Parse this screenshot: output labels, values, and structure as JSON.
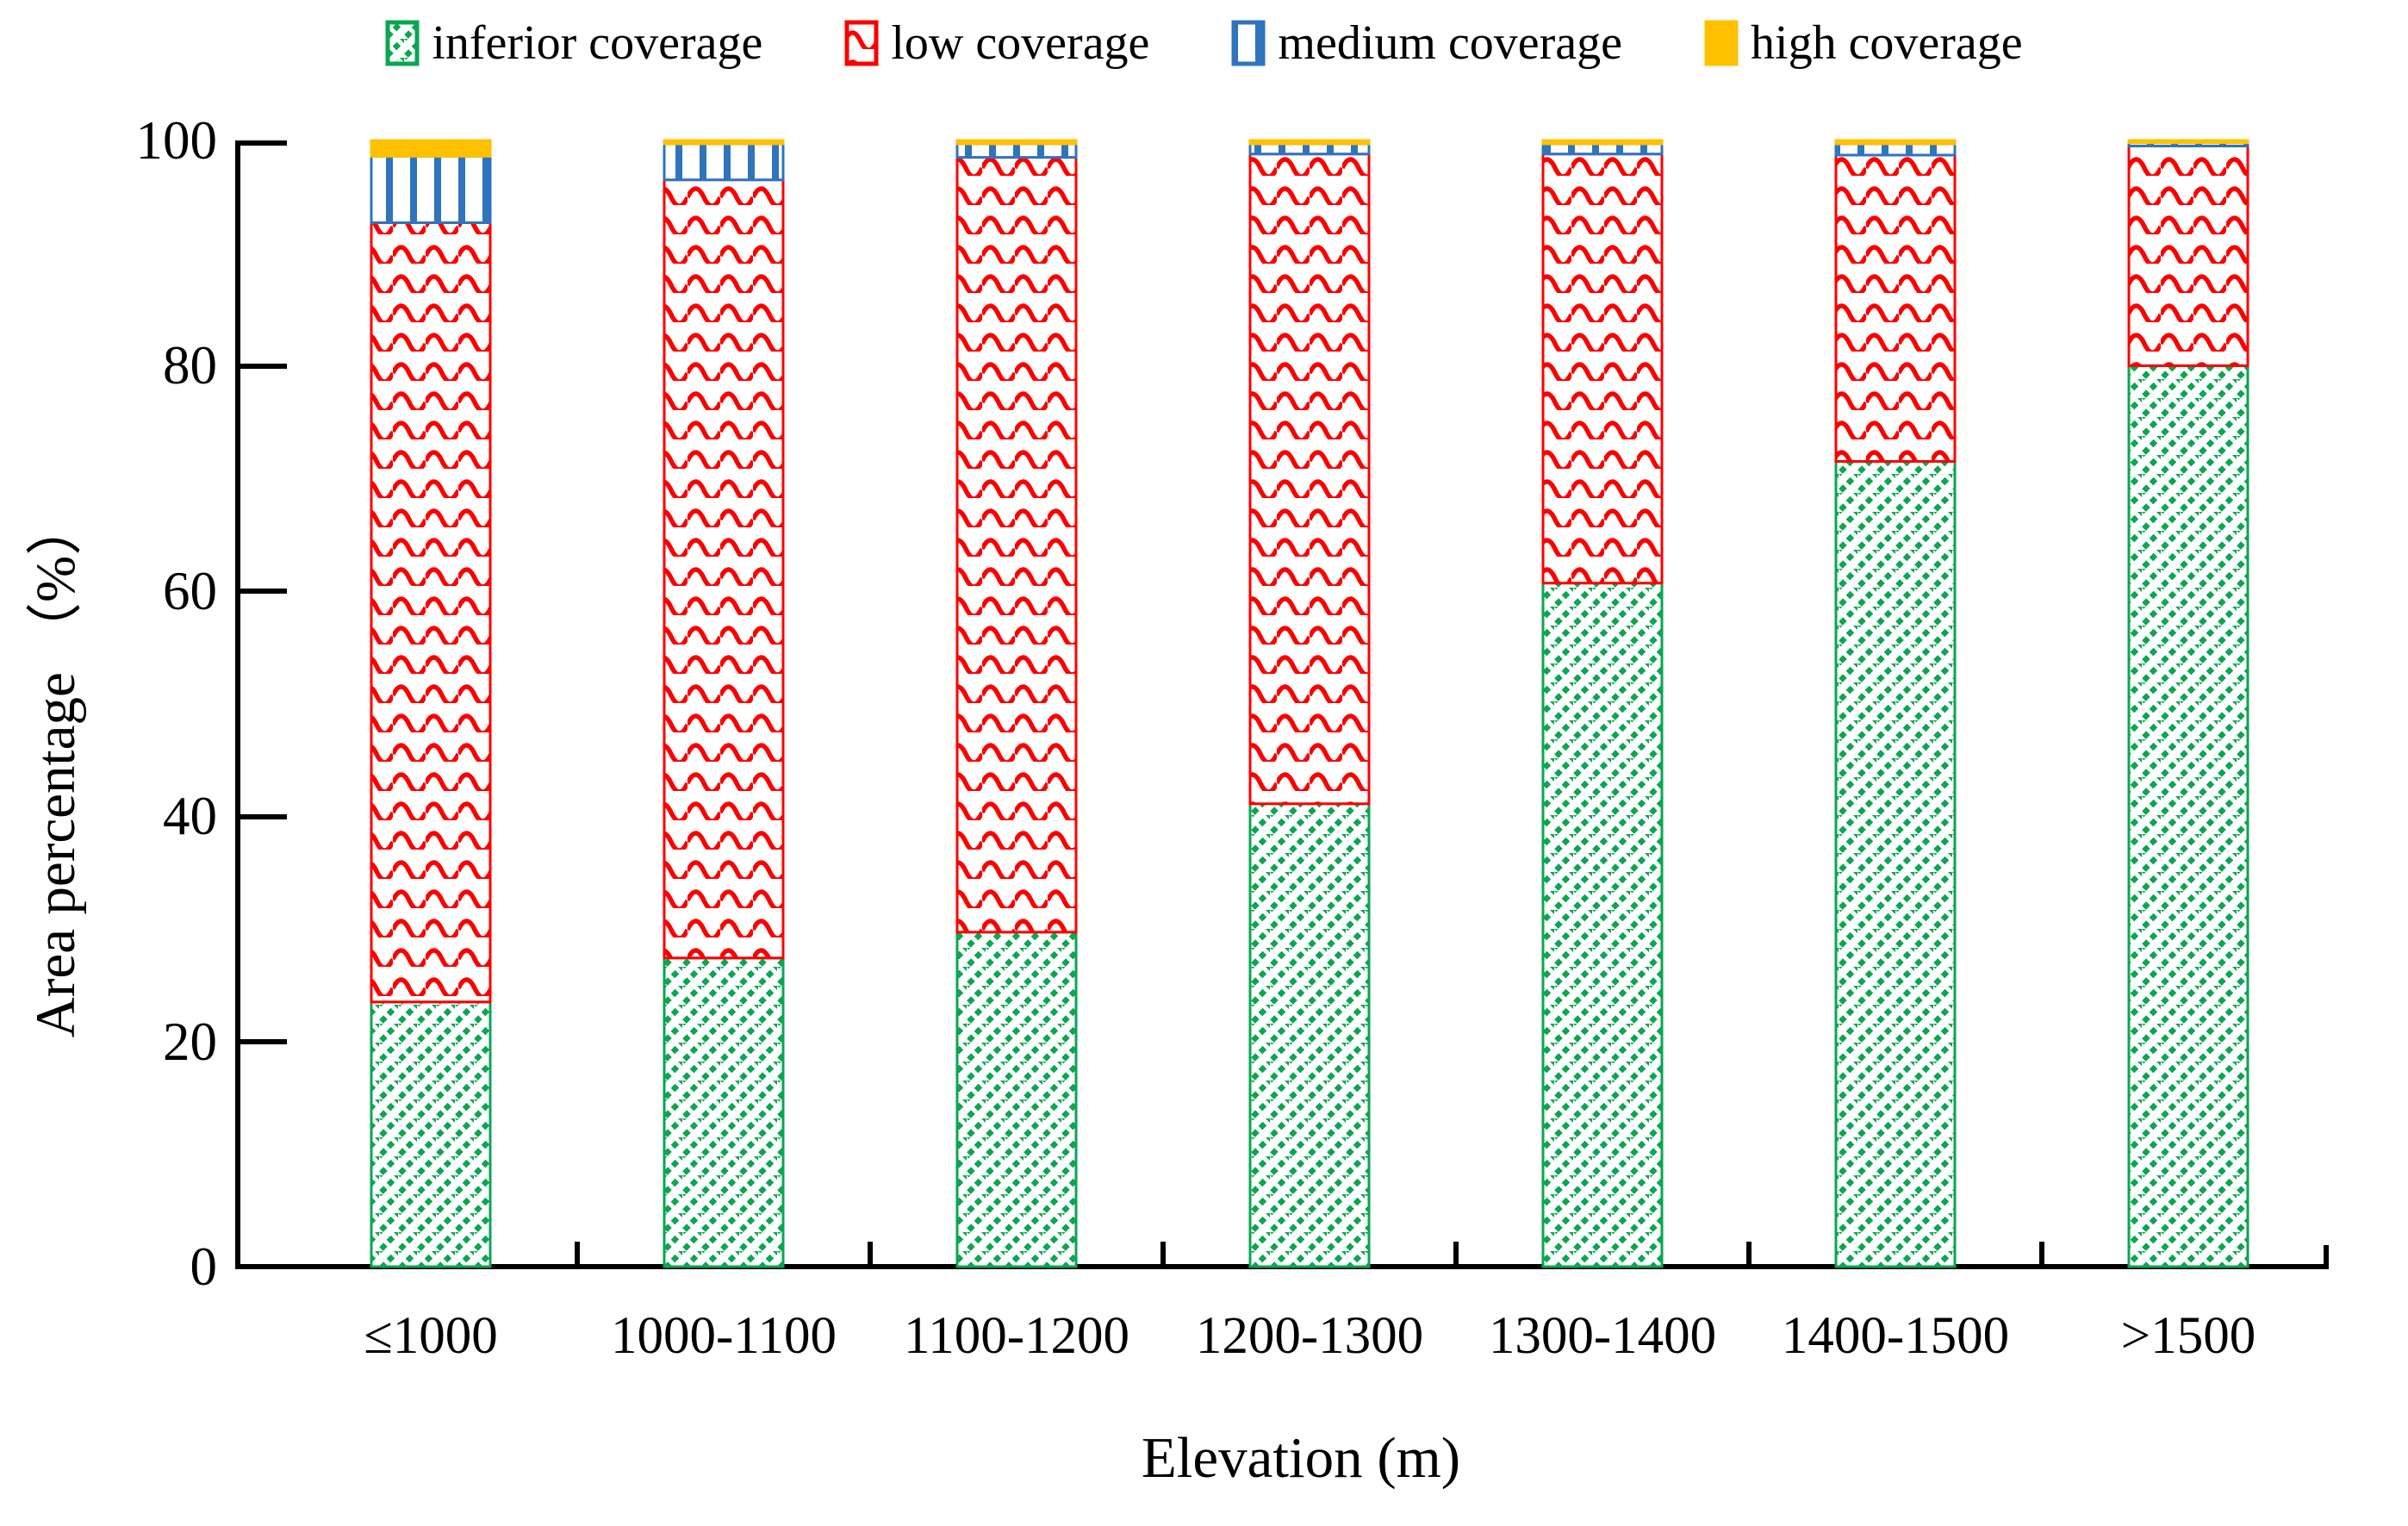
{
  "chart_data": {
    "type": "bar",
    "stacked": true,
    "title": "",
    "xlabel": "Elevation (m)",
    "ylabel": "Area percentage （%）",
    "ylim": [
      0,
      100
    ],
    "yticks": [
      0,
      20,
      40,
      60,
      80,
      100
    ],
    "grid": false,
    "legend_position": "top",
    "categories": [
      "≤1000",
      "1000-1100",
      "1100-1200",
      "1200-1300",
      "1300-1400",
      "1400-1500",
      ">1500"
    ],
    "series": [
      {
        "name": "inferior coverage",
        "color": "#0AA650",
        "pattern": "diagonal-hatch",
        "values": [
          23.5,
          27.4,
          29.7,
          41.1,
          60.7,
          71.5,
          80.0
        ]
      },
      {
        "name": "low coverage",
        "color": "#FC0000",
        "pattern": "wave",
        "values": [
          69.2,
          69.1,
          68.8,
          57.7,
          38.1,
          27.2,
          19.5
        ]
      },
      {
        "name": "medium coverage",
        "color": "#2E74BE",
        "pattern": "vertical-lines",
        "values": [
          5.9,
          3.2,
          1.2,
          0.9,
          0.9,
          1.0,
          0.3
        ]
      },
      {
        "name": "high coverage",
        "color": "#FFC000",
        "pattern": "solid",
        "values": [
          1.4,
          0.3,
          0.3,
          0.3,
          0.3,
          0.3,
          0.2
        ]
      }
    ]
  }
}
